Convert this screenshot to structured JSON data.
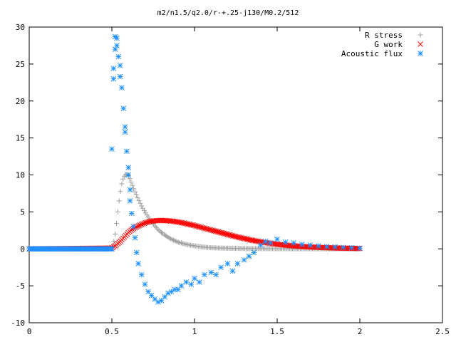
{
  "chart_data": {
    "type": "scatter",
    "title": "m2/n1.5/q2.0/r-+.25-j130/M0.2/512",
    "xlabel": "",
    "ylabel": "",
    "xlim": [
      0,
      2.5
    ],
    "ylim": [
      -10,
      30
    ],
    "grid": false,
    "legend_position": "top-right",
    "xticks": [
      "0",
      "0.5",
      "1",
      "1.5",
      "2",
      "2.5"
    ],
    "yticks": [
      "-10",
      "-5",
      "0",
      "5",
      "10",
      "15",
      "20",
      "25",
      "30"
    ],
    "series": [
      {
        "name": "R stress",
        "marker": "plus",
        "color": "#a0a0a0",
        "x": [
          0.0,
          0.1,
          0.2,
          0.3,
          0.4,
          0.48,
          0.5,
          0.51,
          0.52,
          0.53,
          0.54,
          0.55,
          0.56,
          0.57,
          0.58,
          0.59,
          0.6,
          0.61,
          0.62,
          0.64,
          0.66,
          0.68,
          0.7,
          0.72,
          0.74,
          0.76,
          0.78,
          0.8,
          0.83,
          0.86,
          0.9,
          0.95,
          1.0,
          1.05,
          1.1,
          1.2,
          1.3,
          1.4,
          1.5,
          1.6,
          1.7,
          1.8,
          1.9,
          2.0
        ],
        "y": [
          0,
          0,
          0,
          0,
          0,
          0,
          0.1,
          0.8,
          2.0,
          3.8,
          5.8,
          7.5,
          8.8,
          9.6,
          10.0,
          10.1,
          9.9,
          9.4,
          8.8,
          7.7,
          6.7,
          5.8,
          5.0,
          4.3,
          3.7,
          3.1,
          2.6,
          2.2,
          1.7,
          1.3,
          0.9,
          0.6,
          0.4,
          0.25,
          0.15,
          0.08,
          0.05,
          0.03,
          0.02,
          0.01,
          0.01,
          0.0,
          0.0,
          0.0
        ]
      },
      {
        "name": "G work",
        "marker": "cross",
        "color": "#ff0000",
        "x": [
          0.0,
          0.5,
          0.52,
          0.55,
          0.58,
          0.6,
          0.62,
          0.65,
          0.68,
          0.7,
          0.73,
          0.76,
          0.8,
          0.84,
          0.88,
          0.92,
          0.96,
          1.0,
          1.05,
          1.1,
          1.15,
          1.2,
          1.25,
          1.3,
          1.35,
          1.4,
          1.45,
          1.5,
          1.55,
          1.6,
          1.65,
          1.7,
          1.75,
          1.8,
          1.85,
          1.9,
          1.95,
          2.0
        ],
        "y": [
          0,
          0.1,
          0.4,
          1.0,
          1.7,
          2.2,
          2.6,
          3.0,
          3.3,
          3.5,
          3.7,
          3.8,
          3.85,
          3.8,
          3.7,
          3.55,
          3.35,
          3.15,
          2.85,
          2.55,
          2.25,
          1.95,
          1.65,
          1.4,
          1.15,
          0.95,
          0.78,
          0.62,
          0.5,
          0.4,
          0.32,
          0.25,
          0.2,
          0.16,
          0.12,
          0.09,
          0.07,
          0.05
        ]
      },
      {
        "name": "Acoustic flux",
        "marker": "star",
        "color": "#1e90ff",
        "x": [
          0.0,
          0.05,
          0.1,
          0.15,
          0.2,
          0.25,
          0.3,
          0.35,
          0.4,
          0.45,
          0.5,
          0.5,
          0.51,
          0.51,
          0.52,
          0.52,
          0.53,
          0.53,
          0.54,
          0.55,
          0.55,
          0.56,
          0.57,
          0.58,
          0.58,
          0.59,
          0.6,
          0.6,
          0.61,
          0.61,
          0.62,
          0.63,
          0.64,
          0.65,
          0.66,
          0.68,
          0.7,
          0.72,
          0.74,
          0.76,
          0.78,
          0.8,
          0.82,
          0.84,
          0.86,
          0.88,
          0.9,
          0.92,
          0.95,
          0.98,
          1.0,
          1.03,
          1.06,
          1.1,
          1.13,
          1.16,
          1.2,
          1.23,
          1.26,
          1.3,
          1.33,
          1.36,
          1.4,
          1.43,
          1.46,
          1.5,
          1.55,
          1.6,
          1.65,
          1.7,
          1.75,
          1.8,
          1.85,
          1.9,
          1.95,
          2.0
        ],
        "y": [
          0,
          0,
          0,
          0,
          0,
          0,
          0,
          0,
          0,
          0,
          0,
          13.5,
          24.4,
          23.0,
          27.0,
          28.7,
          28.5,
          27.5,
          26.0,
          24.8,
          23.3,
          21.8,
          19.0,
          16.5,
          15.8,
          13.2,
          11.0,
          10.0,
          8.0,
          6.5,
          4.8,
          3.0,
          1.5,
          -0.5,
          -2.0,
          -3.5,
          -4.8,
          -5.8,
          -6.3,
          -6.8,
          -7.2,
          -7.0,
          -6.5,
          -6.0,
          -5.8,
          -5.5,
          -5.5,
          -5.0,
          -4.5,
          -4.8,
          -4.0,
          -4.5,
          -3.5,
          -3.2,
          -3.5,
          -2.5,
          -2.0,
          -3.0,
          -2.0,
          -1.5,
          -1.0,
          -0.5,
          0.5,
          1.0,
          0.8,
          1.3,
          0.9,
          0.8,
          0.6,
          0.5,
          0.4,
          0.3,
          0.25,
          0.2,
          0.15,
          0.1
        ]
      }
    ]
  }
}
